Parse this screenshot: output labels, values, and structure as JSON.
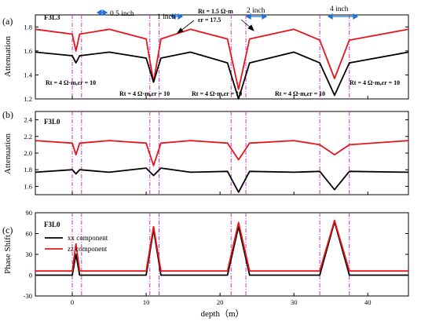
{
  "chart_data": [
    {
      "type": "line",
      "panel_label": "(a)",
      "tool_tag": "F3L3",
      "ylabel": "Attenuation",
      "xlim": [
        -5,
        45.5
      ],
      "ylim": [
        1.2,
        1.9
      ],
      "yticks": [
        1.2,
        1.4,
        1.6,
        1.8
      ],
      "ytick_labels": [
        "1.2",
        "1.4",
        "1.6",
        "1.8"
      ],
      "series": [
        {
          "color": "#e8141b",
          "x": [
            -5,
            0,
            0.5,
            1,
            5,
            10,
            11,
            12,
            16,
            21,
            22.5,
            24,
            30,
            33.5,
            35.5,
            37.5,
            45.5
          ],
          "y": [
            1.78,
            1.74,
            1.6,
            1.74,
            1.78,
            1.7,
            1.34,
            1.7,
            1.78,
            1.7,
            1.28,
            1.7,
            1.78,
            1.69,
            1.37,
            1.69,
            1.78
          ]
        },
        {
          "color": "#000000",
          "x": [
            -5,
            0,
            0.5,
            1,
            5,
            10,
            11,
            12,
            16,
            21,
            22.5,
            24,
            30,
            33.5,
            35.5,
            37.5,
            45.5
          ],
          "y": [
            1.59,
            1.56,
            1.5,
            1.56,
            1.59,
            1.54,
            1.34,
            1.54,
            1.59,
            1.5,
            1.2,
            1.5,
            1.59,
            1.5,
            1.23,
            1.5,
            1.59
          ]
        }
      ],
      "annotations": [
        {
          "text": "0.5 inch"
        },
        {
          "text": "1 inch"
        },
        {
          "text": "2 inch"
        },
        {
          "text": "4 inch"
        },
        {
          "text": "Rt = 1.5 Ω·m"
        },
        {
          "text": "εr = 17.5"
        },
        {
          "text": "Rt = 4 Ω·m,εr = 10"
        },
        {
          "text": "Rt = 4 Ω·m,εr = 10"
        },
        {
          "text": "Rt = 4 Ω·m,εr = 10"
        },
        {
          "text": "Rt = 4 Ω·m,εr = 10"
        },
        {
          "text": "Rt = 4 Ω·m,εr = 10"
        }
      ]
    },
    {
      "type": "line",
      "panel_label": "(b)",
      "tool_tag": "F3L0",
      "ylabel": "Attenuation",
      "xlim": [
        -5,
        45.5
      ],
      "ylim": [
        1.5,
        2.5
      ],
      "yticks": [
        1.6,
        1.8,
        2.0,
        2.2,
        2.4
      ],
      "ytick_labels": [
        "1.6",
        "1.8",
        "2.0",
        "2.2",
        "2.4"
      ],
      "series": [
        {
          "color": "#e8141b",
          "x": [
            -5,
            0,
            0.5,
            1,
            5,
            10,
            11,
            12,
            16,
            21,
            22.5,
            24,
            30,
            33.5,
            35.5,
            37.5,
            45.5
          ],
          "y": [
            2.15,
            2.12,
            1.98,
            2.12,
            2.15,
            2.12,
            1.85,
            2.12,
            2.15,
            2.12,
            1.92,
            2.12,
            2.15,
            2.1,
            1.98,
            2.1,
            2.15
          ]
        },
        {
          "color": "#000000",
          "x": [
            -5,
            0,
            0.5,
            1,
            5,
            10,
            11,
            12,
            16,
            21,
            22.5,
            24,
            30,
            33.5,
            35.5,
            37.5,
            45.5
          ],
          "y": [
            1.77,
            1.8,
            1.75,
            1.8,
            1.77,
            1.82,
            1.73,
            1.82,
            1.77,
            1.78,
            1.53,
            1.78,
            1.77,
            1.78,
            1.56,
            1.78,
            1.77
          ]
        }
      ]
    },
    {
      "type": "line",
      "panel_label": "(c)",
      "tool_tag": "F3L0",
      "ylabel": "Phase Shift",
      "xlabel": "depth（m）",
      "xlim": [
        -5,
        45.5
      ],
      "ylim": [
        -30,
        90
      ],
      "xticks": [
        0,
        10,
        20,
        30,
        40
      ],
      "xtick_labels": [
        "0",
        "10",
        "20",
        "30",
        "40"
      ],
      "yticks": [
        -30,
        0,
        30,
        60,
        90
      ],
      "ytick_labels": [
        "-30",
        "0",
        "30",
        "60",
        "90"
      ],
      "legend": {
        "position": "top-left"
      },
      "series": [
        {
          "name": "xx component",
          "color": "#000000",
          "x": [
            -5,
            0,
            0.5,
            1,
            5,
            10,
            11,
            12,
            16,
            21,
            22.5,
            24,
            30,
            33.5,
            35.5,
            37.5,
            45.5
          ],
          "y": [
            0,
            0,
            30,
            0,
            0,
            0,
            66,
            0,
            0,
            0,
            70,
            0,
            0,
            0,
            77,
            0,
            0
          ]
        },
        {
          "name": "zz component",
          "color": "#e8141b",
          "x": [
            -5,
            0,
            0.5,
            1,
            5,
            10,
            11,
            12,
            16,
            21,
            22.5,
            24,
            30,
            33.5,
            35.5,
            37.5,
            45.5
          ],
          "y": [
            6,
            6,
            45,
            6,
            6,
            6,
            70,
            6,
            6,
            6,
            76,
            6,
            6,
            6,
            79,
            6,
            6
          ]
        }
      ]
    }
  ],
  "boundaries": [
    0,
    1.25,
    10.5,
    11.75,
    21.5,
    23.5,
    33.5,
    37.5
  ],
  "boundary_color": "#cc33cc",
  "arrow_color": "#1a73d9"
}
